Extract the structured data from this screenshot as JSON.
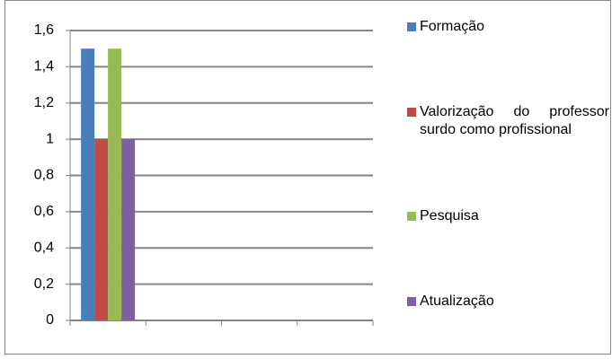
{
  "chart_data": {
    "type": "bar",
    "categories": [
      null,
      null,
      null,
      null
    ],
    "series": [
      {
        "name": "Formação",
        "color": "#4a7ebb",
        "values": [
          1.5,
          null,
          null,
          null
        ]
      },
      {
        "name": "Valorização do professor surdo como profissional",
        "color": "#be4b48",
        "values": [
          1,
          null,
          null,
          null
        ]
      },
      {
        "name": "Pesquisa",
        "color": "#98b954",
        "values": [
          1.5,
          null,
          null,
          null
        ]
      },
      {
        "name": "Atualização",
        "color": "#7d60a0",
        "values": [
          1,
          null,
          null,
          null
        ]
      }
    ],
    "ylim": [
      0,
      1.6
    ],
    "yticks": [
      0,
      {
        "value": 0.2,
        "label": "0,2"
      },
      {
        "value": 0.4,
        "label": "0,4"
      },
      {
        "value": 0.6,
        "label": "0,6"
      },
      {
        "value": 0.8,
        "label": "0,8"
      },
      1,
      {
        "value": 1.2,
        "label": "1,2"
      },
      {
        "value": 1.4,
        "label": "1,4"
      },
      {
        "value": 1.6,
        "label": "1,6"
      }
    ],
    "grid": true,
    "legend": "right"
  }
}
